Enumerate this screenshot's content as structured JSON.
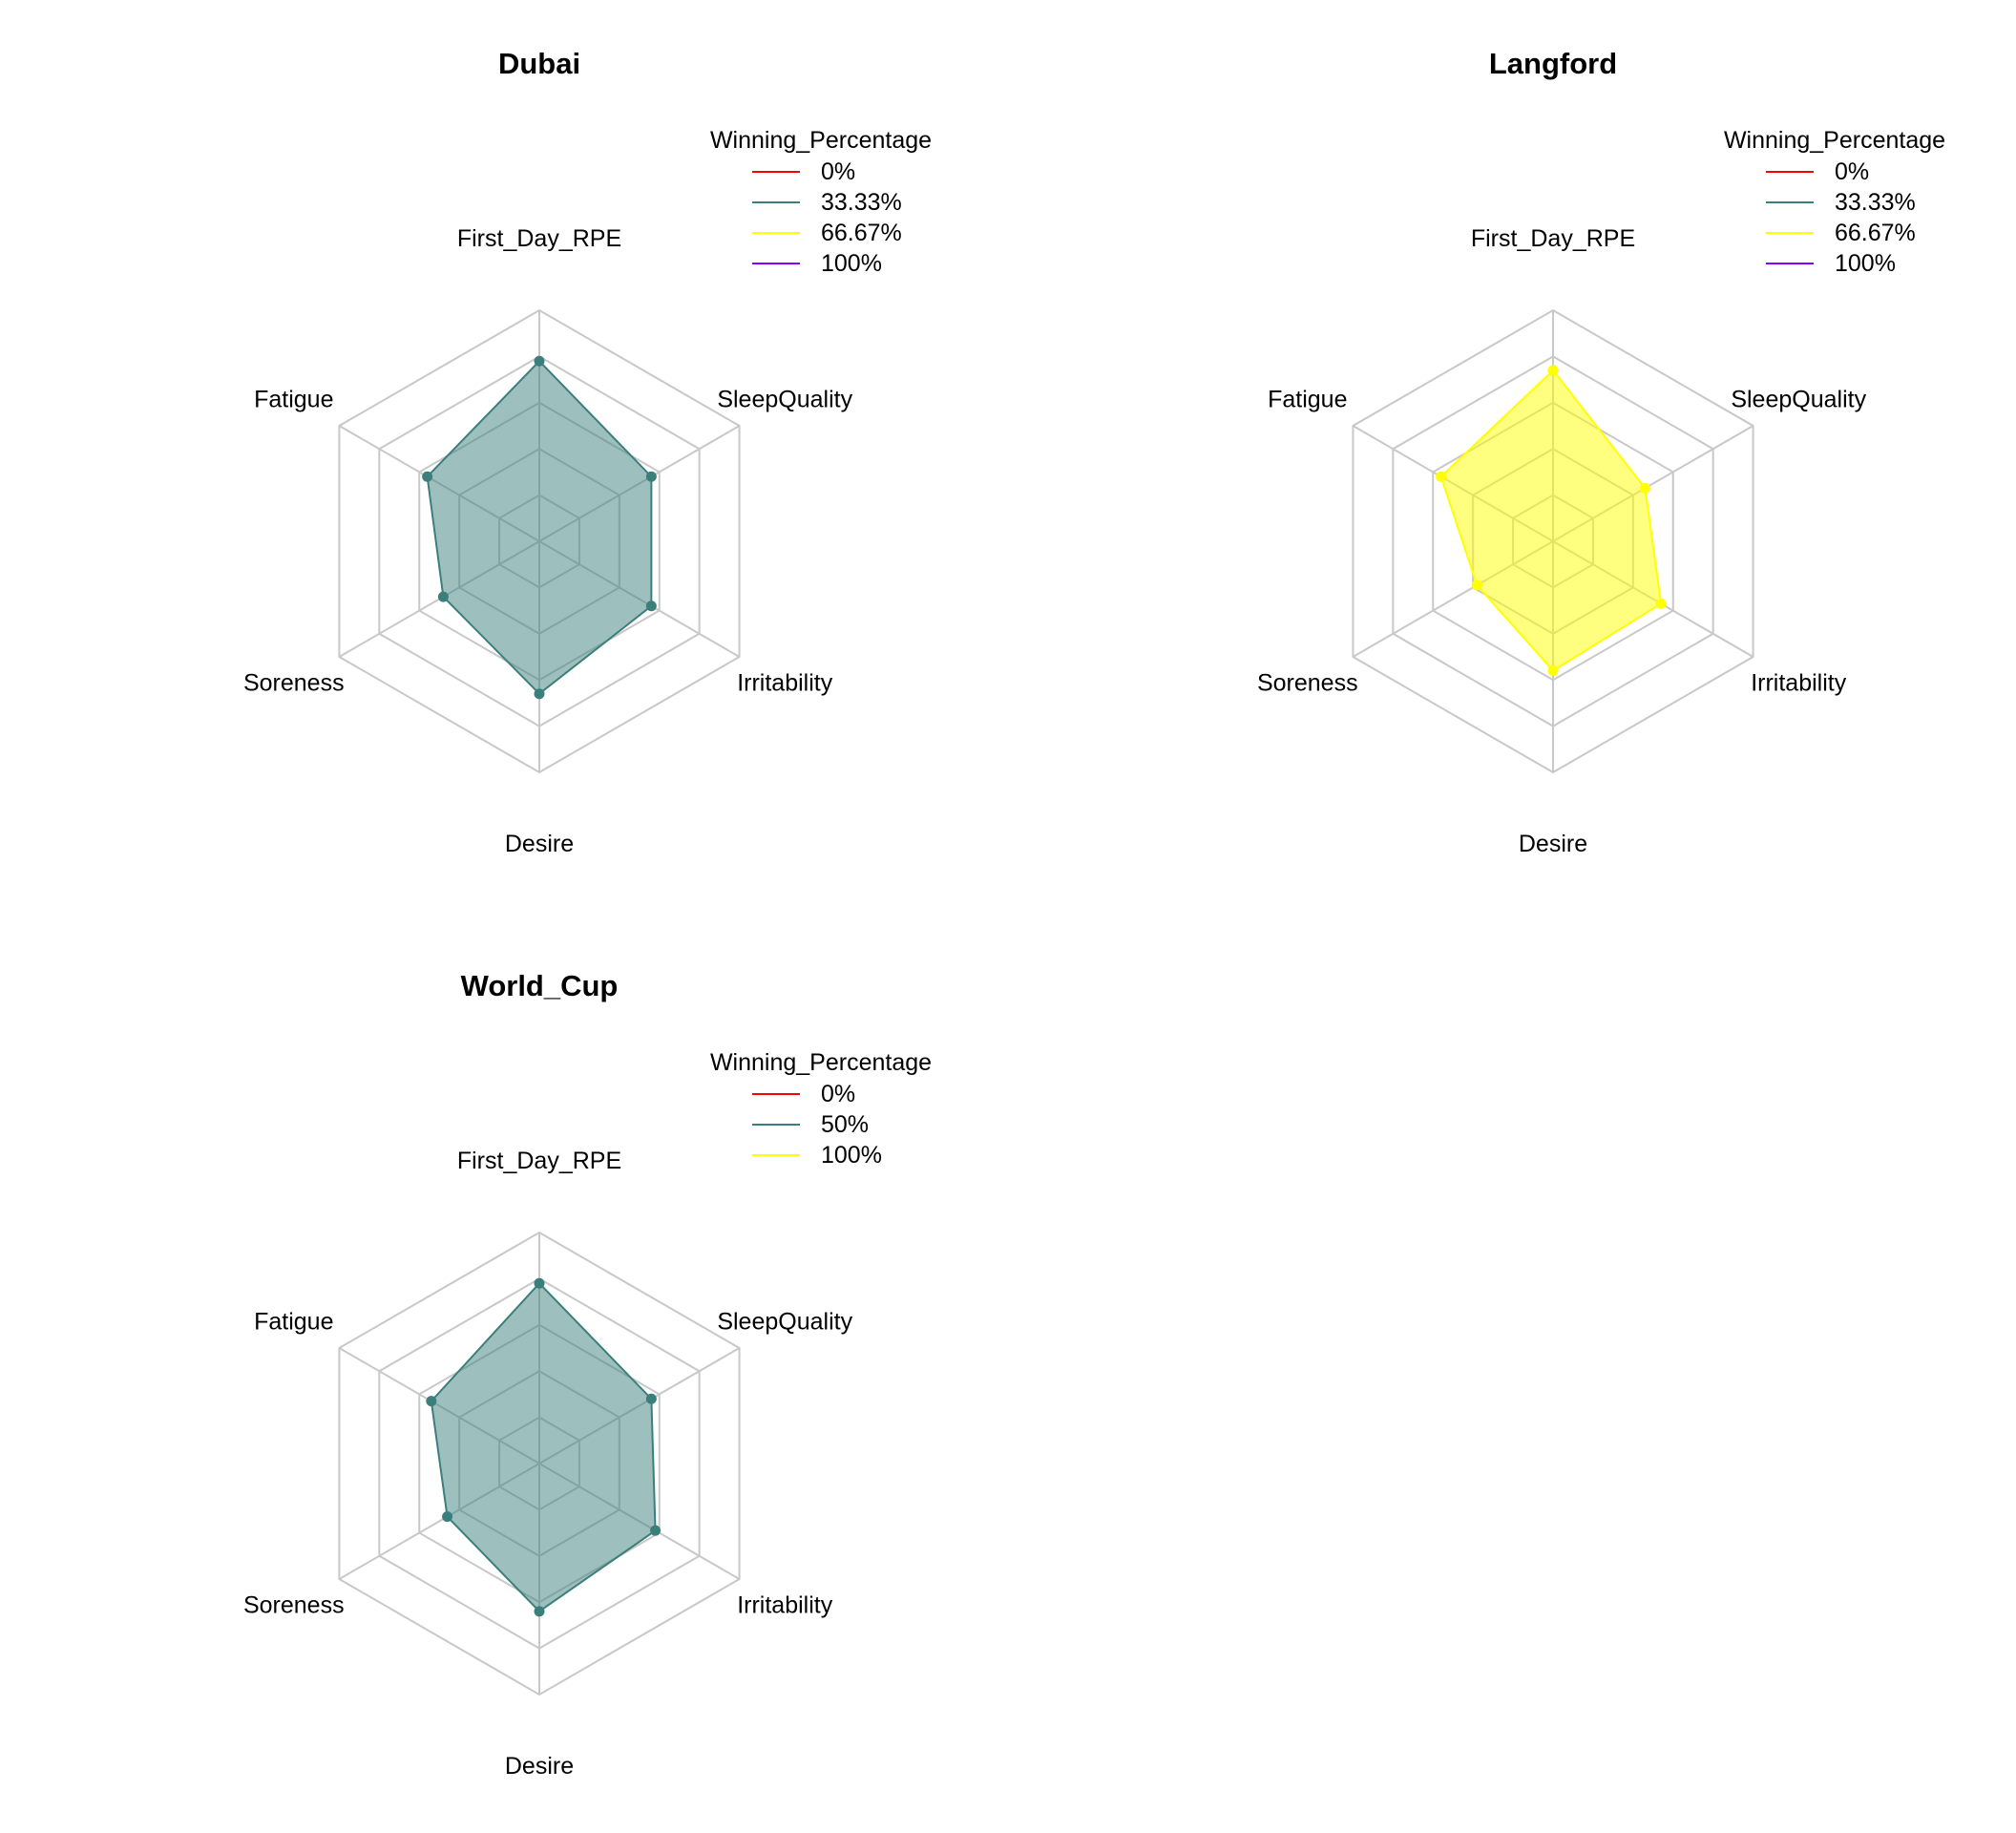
{
  "chart_data": [
    {
      "type": "radar",
      "title": "Dubai",
      "axes": [
        "First_Day_RPE",
        "SleepQuality",
        "Irritability",
        "Desire",
        "Soreness",
        "Fatigue"
      ],
      "rmax": 5,
      "grid_levels": 5,
      "legend": {
        "title": "Winning_Percentage",
        "placement": "top-right",
        "entries": [
          {
            "label": "0%",
            "color": "#ff0000"
          },
          {
            "label": "33.33%",
            "color": "#3b7f7c"
          },
          {
            "label": "66.67%",
            "color": "#ffff00"
          },
          {
            "label": "100%",
            "color": "#8a00ff"
          }
        ]
      },
      "series": [
        {
          "values": [
            3.9,
            2.8,
            2.8,
            3.3,
            2.4,
            2.8
          ],
          "color": "#3b7f7c",
          "fill": "#3b7f7c",
          "fill_opacity": 0.5
        }
      ]
    },
    {
      "type": "radar",
      "title": "Langford",
      "axes": [
        "First_Day_RPE",
        "SleepQuality",
        "Irritability",
        "Desire",
        "Soreness",
        "Fatigue"
      ],
      "rmax": 5,
      "grid_levels": 5,
      "legend": {
        "title": "Winning_Percentage",
        "placement": "top-right",
        "entries": [
          {
            "label": "0%",
            "color": "#ff0000"
          },
          {
            "label": "33.33%",
            "color": "#3b7f7c"
          },
          {
            "label": "66.67%",
            "color": "#ffff00"
          },
          {
            "label": "100%",
            "color": "#8a00ff"
          }
        ]
      },
      "series": [
        {
          "values": [
            3.7,
            2.3,
            2.7,
            2.8,
            1.9,
            2.8
          ],
          "color": "#ffff00",
          "fill": "#ffff00",
          "fill_opacity": 0.5
        }
      ]
    },
    {
      "type": "radar",
      "title": "World_Cup",
      "axes": [
        "First_Day_RPE",
        "SleepQuality",
        "Irritability",
        "Desire",
        "Soreness",
        "Fatigue"
      ],
      "rmax": 5,
      "grid_levels": 5,
      "legend": {
        "title": "Winning_Percentage",
        "placement": "top-right",
        "entries": [
          {
            "label": "0%",
            "color": "#ff0000"
          },
          {
            "label": "50%",
            "color": "#3b7f7c"
          },
          {
            "label": "100%",
            "color": "#ffff00"
          }
        ]
      },
      "series": [
        {
          "values": [
            3.9,
            2.8,
            2.9,
            3.2,
            2.3,
            2.7
          ],
          "color": "#3b7f7c",
          "fill": "#3b7f7c",
          "fill_opacity": 0.5
        }
      ]
    }
  ]
}
